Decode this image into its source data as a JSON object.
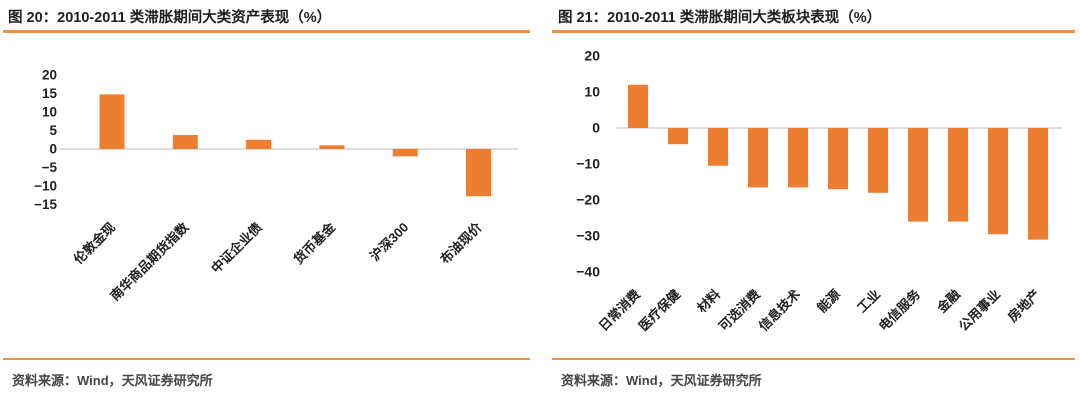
{
  "colors": {
    "bar": "#ED7D31",
    "rule": "#F0913C",
    "zero_line": "#DCDCDC",
    "tick": "#212121",
    "category": "#1F1F1F",
    "title": "#1E1E1E",
    "source": "#454545"
  },
  "panels": [
    {
      "title": "图 20：2010-2011 类滞胀期间大类资产表现（%）",
      "source": "资料来源：Wind，天风证券研究所"
    },
    {
      "title": "图 21：2010-2011 类滞胀期间大类板块表现（%）",
      "source": "资料来源：Wind，天风证券研究所"
    }
  ],
  "chart_data": [
    {
      "type": "bar",
      "title": "图 20：2010-2011 类滞胀期间大类资产表现（%）",
      "categories": [
        "伦敦金现",
        "南华商品期货指数",
        "中证企业债",
        "货币基金",
        "沪深300",
        "布油现价"
      ],
      "values": [
        14.8,
        3.8,
        2.5,
        1.0,
        -2.0,
        -12.8
      ],
      "ylabel": "",
      "xlabel": "",
      "ylim": [
        -15,
        20
      ],
      "y_ticks": [
        20,
        15,
        10,
        5,
        0,
        -5,
        -10,
        -15
      ],
      "grid": false,
      "legend": null,
      "bar_color": "#ED7D31"
    },
    {
      "type": "bar",
      "title": "图 21：2010-2011 类滞胀期间大类板块表现（%）",
      "categories": [
        "日常消费",
        "医疗保健",
        "材料",
        "可选消费",
        "信息技术",
        "能源",
        "工业",
        "电信服务",
        "金融",
        "公用事业",
        "房地产"
      ],
      "values": [
        12,
        -4.5,
        -10.5,
        -16.5,
        -16.5,
        -17,
        -18,
        -26,
        -26,
        -29.5,
        -31
      ],
      "ylabel": "",
      "xlabel": "",
      "ylim": [
        -40,
        20
      ],
      "y_ticks": [
        20,
        10,
        0,
        -10,
        -20,
        -30,
        -40
      ],
      "grid": false,
      "legend": null,
      "bar_color": "#ED7D31"
    }
  ]
}
